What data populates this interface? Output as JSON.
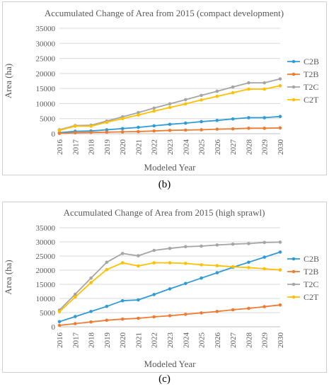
{
  "colors": {
    "C2B": "#2e9bd6",
    "T2B": "#ee7b30",
    "T2C": "#a5a5a5",
    "C2T": "#ffc000",
    "grid": "#d9d9d9",
    "axis": "#bfbfbf",
    "text": "#595959"
  },
  "panel_labels": {
    "b": "(b)",
    "c": "(c)"
  },
  "chart_data": [
    {
      "type": "line",
      "title": "Accumulated Change of Area from 2015 (compact development)",
      "xlabel": "Modeled Year",
      "ylabel": "Area (ha)",
      "ylim": [
        0,
        35000
      ],
      "yticks": [
        0,
        5000,
        10000,
        15000,
        20000,
        25000,
        30000,
        35000
      ],
      "ytick_labels": [
        "0",
        "5000",
        "10000",
        "15000",
        "20000",
        "25000",
        "30000",
        "35000"
      ],
      "grid": true,
      "legend": "right",
      "categories": [
        "2016",
        "2017",
        "2018",
        "2019",
        "2020",
        "2021",
        "2022",
        "2023",
        "2024",
        "2025",
        "2026",
        "2027",
        "2028",
        "2029",
        "2030"
      ],
      "series": [
        {
          "name": "C2B",
          "values": [
            300,
            800,
            900,
            1300,
            1700,
            2100,
            2600,
            3100,
            3500,
            4000,
            4400,
            4900,
            5300,
            5300,
            5700
          ]
        },
        {
          "name": "T2B",
          "values": [
            100,
            300,
            400,
            500,
            600,
            700,
            900,
            1100,
            1200,
            1300,
            1500,
            1600,
            1800,
            1800,
            1900
          ]
        },
        {
          "name": "T2C",
          "values": [
            1300,
            2700,
            2800,
            4200,
            5600,
            7000,
            8500,
            9900,
            11300,
            12700,
            14100,
            15500,
            16900,
            16900,
            18200
          ]
        },
        {
          "name": "C2T",
          "values": [
            1100,
            2500,
            2500,
            3800,
            5000,
            6200,
            7500,
            8700,
            9900,
            11200,
            12400,
            13600,
            14800,
            14800,
            15900
          ]
        }
      ]
    },
    {
      "type": "line",
      "title": "Accumulated Change of Area from 2015 (high sprawl)",
      "xlabel": "Modeled Year",
      "ylabel": "Area (ha)",
      "ylim": [
        0,
        35000
      ],
      "yticks": [
        0,
        5000,
        10000,
        15000,
        20000,
        25000,
        30000,
        35000
      ],
      "ytick_labels": [
        "0",
        "5000",
        "10000",
        "15000",
        "20000",
        "25000",
        "30000",
        "35000"
      ],
      "grid": true,
      "legend": "right",
      "categories": [
        "2016",
        "2017",
        "2018",
        "2019",
        "2020",
        "2021",
        "2022",
        "2023",
        "2024",
        "2025",
        "2026",
        "2027",
        "2028",
        "2029",
        "2030"
      ],
      "series": [
        {
          "name": "C2B",
          "values": [
            1800,
            3600,
            5400,
            7200,
            9200,
            9500,
            11400,
            13400,
            15300,
            17200,
            19100,
            21000,
            22800,
            24600,
            26400
          ]
        },
        {
          "name": "T2B",
          "values": [
            500,
            1100,
            1700,
            2300,
            2700,
            3000,
            3500,
            3900,
            4400,
            4900,
            5400,
            6000,
            6500,
            7100,
            7700
          ]
        },
        {
          "name": "T2C",
          "values": [
            5900,
            11500,
            17200,
            22800,
            25900,
            25100,
            27000,
            27700,
            28300,
            28500,
            28900,
            29200,
            29400,
            29800,
            29900
          ]
        },
        {
          "name": "C2T",
          "values": [
            5300,
            10500,
            15600,
            20200,
            22600,
            21500,
            22600,
            22600,
            22400,
            21900,
            21600,
            21200,
            20900,
            20500,
            20100
          ]
        }
      ]
    }
  ]
}
